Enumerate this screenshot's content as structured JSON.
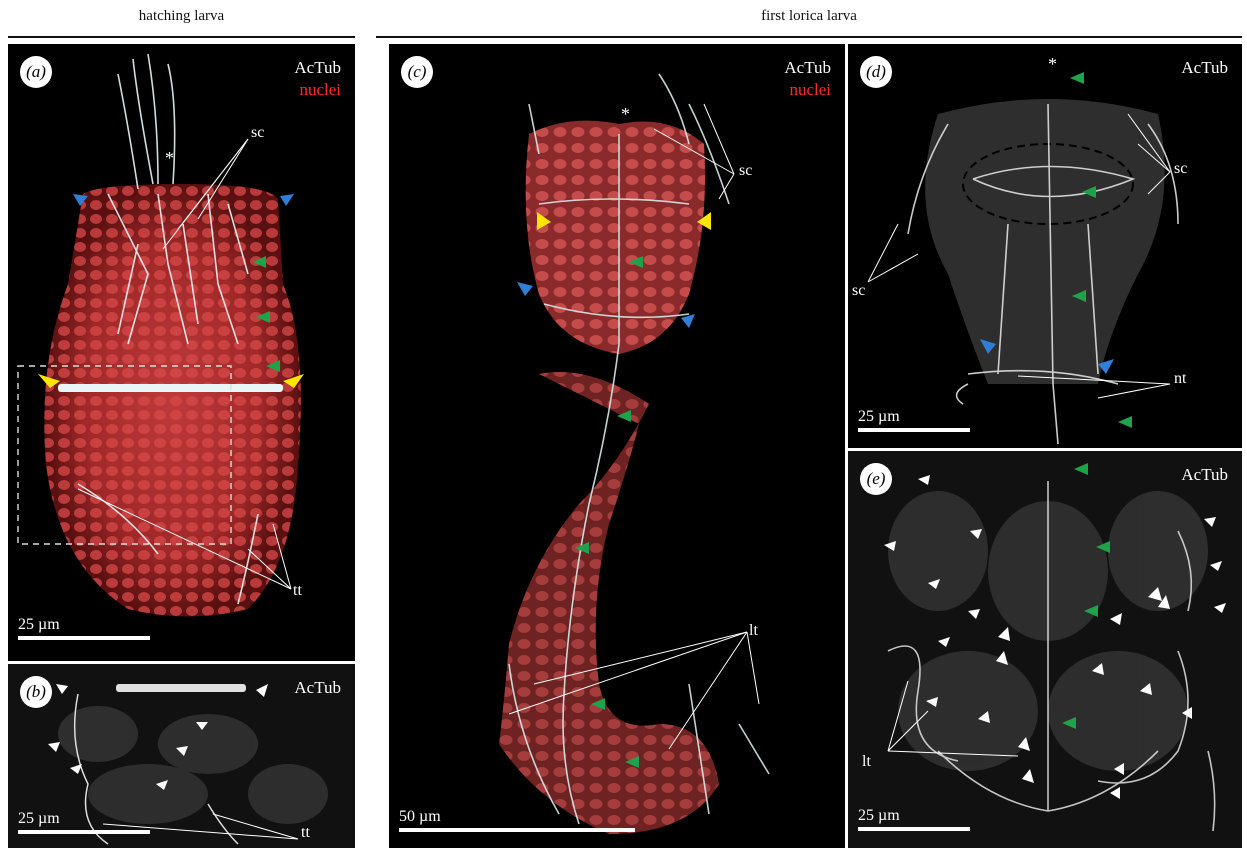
{
  "headers": {
    "left": "hatching larva",
    "right": "first lorica larva"
  },
  "panels": {
    "a": {
      "label": "(a)",
      "stain1": "AcTub",
      "stain2": "nuclei",
      "sc": "sc",
      "tt": "tt",
      "asterisk": "*",
      "scale": "25 µm"
    },
    "b": {
      "label": "(b)",
      "stain1": "AcTub",
      "tt": "tt",
      "scale": "25 µm"
    },
    "c": {
      "label": "(c)",
      "stain1": "AcTub",
      "stain2": "nuclei",
      "sc": "sc",
      "lt": "lt",
      "asterisk": "*",
      "scale": "50 µm"
    },
    "d": {
      "label": "(d)",
      "stain1": "AcTub",
      "sc1": "sc",
      "sc2": "sc",
      "nt": "nt",
      "asterisk": "*",
      "scale": "25 µm"
    },
    "e": {
      "label": "(e)",
      "stain1": "AcTub",
      "lt": "lt",
      "scale": "25 µm"
    }
  },
  "colors": {
    "nuclei": "#ff2a2a",
    "tubulin": "#ffffff",
    "arrow_yellow": "#ffe600",
    "arrowhead_blue": "#2f7fd6",
    "arrowhead_green": "#1fa34a"
  }
}
